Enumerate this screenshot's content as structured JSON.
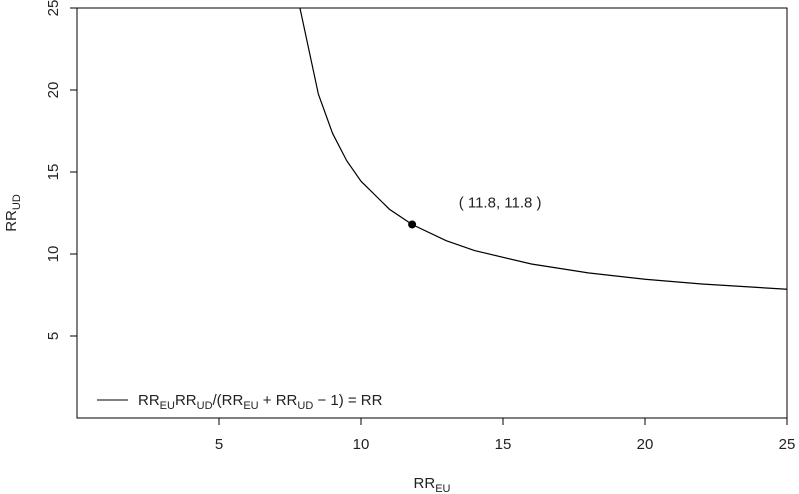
{
  "chart_data": {
    "type": "line",
    "xlabel": [
      {
        "text": "RR"
      },
      {
        "text": "EU",
        "sub": true
      }
    ],
    "ylabel": [
      {
        "text": "RR"
      },
      {
        "text": "UD",
        "sub": true
      }
    ],
    "xlim": [
      0,
      25
    ],
    "ylim": [
      0,
      25
    ],
    "xticks": [
      5,
      10,
      15,
      20,
      25
    ],
    "yticks": [
      5,
      10,
      15,
      20,
      25
    ],
    "series": [
      {
        "color": "#000000",
        "x": [
          7.85,
          8.5,
          9,
          9.5,
          10,
          11,
          11.8,
          13,
          14,
          16,
          18,
          20,
          22,
          25
        ],
        "values": [
          25,
          19.74,
          17.35,
          15.68,
          14.44,
          12.73,
          11.8,
          10.81,
          10.21,
          9.39,
          8.85,
          8.46,
          8.17,
          7.85
        ]
      }
    ],
    "points": [
      {
        "x": 11.8,
        "y": 11.8,
        "label": "( 11.8, 11.8 )"
      }
    ],
    "legend": {
      "position": "bottom-left",
      "parts": [
        {
          "text": "RR"
        },
        {
          "text": "EU",
          "sub": true
        },
        {
          "text": "RR"
        },
        {
          "text": "UD",
          "sub": true
        },
        {
          "text": "/(RR"
        },
        {
          "text": "EU",
          "sub": true
        },
        {
          "text": " + RR"
        },
        {
          "text": "UD",
          "sub": true
        },
        {
          "text": " − 1) = RR"
        }
      ]
    }
  }
}
